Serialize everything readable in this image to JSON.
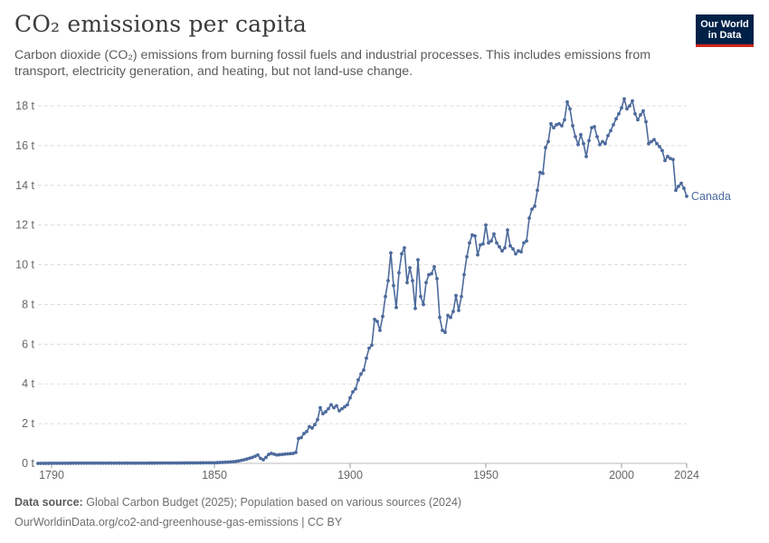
{
  "header": {
    "title": "CO₂ emissions per capita",
    "subtitle": "Carbon dioxide (CO₂) emissions from burning fossil fuels and industrial processes. This includes emissions from transport, electricity generation, and heating, but not land-use change."
  },
  "logo": {
    "line1": "Our World",
    "line2": "in Data"
  },
  "footer": {
    "source_label": "Data source:",
    "source_text": "Global Carbon Budget (2025); Population based on various sources (2024)",
    "url": "OurWorldinData.org/co2-and-greenhouse-gas-emissions | CC BY"
  },
  "colors": {
    "line": "#4c6a9c",
    "grid": "#dddddd",
    "text": "#5b5b5b"
  },
  "chart_data": {
    "type": "line",
    "title": "CO₂ emissions per capita",
    "xlabel": "",
    "ylabel": "",
    "xlim": [
      1785,
      2024
    ],
    "ylim": [
      0,
      18
    ],
    "x_ticks": [
      1790,
      1850,
      1900,
      1950,
      2000,
      2024
    ],
    "y_ticks": [
      0,
      2,
      4,
      6,
      8,
      10,
      12,
      14,
      16,
      18
    ],
    "y_tick_labels": [
      "0 t",
      "2 t",
      "4 t",
      "6 t",
      "8 t",
      "10 t",
      "12 t",
      "14 t",
      "16 t",
      "18 t"
    ],
    "grid": "horizontal-dashed",
    "series": [
      {
        "name": "Canada",
        "points": [
          [
            1785,
            0.0
          ],
          [
            1800,
            0.01
          ],
          [
            1820,
            0.01
          ],
          [
            1840,
            0.02
          ],
          [
            1850,
            0.03
          ],
          [
            1855,
            0.06
          ],
          [
            1858,
            0.1
          ],
          [
            1861,
            0.18
          ],
          [
            1864,
            0.3
          ],
          [
            1866,
            0.42
          ],
          [
            1867,
            0.25
          ],
          [
            1868,
            0.18
          ],
          [
            1869,
            0.3
          ],
          [
            1870,
            0.45
          ],
          [
            1871,
            0.5
          ],
          [
            1873,
            0.42
          ],
          [
            1875,
            0.45
          ],
          [
            1877,
            0.48
          ],
          [
            1879,
            0.5
          ],
          [
            1880,
            0.55
          ],
          [
            1881,
            1.25
          ],
          [
            1882,
            1.3
          ],
          [
            1883,
            1.5
          ],
          [
            1884,
            1.6
          ],
          [
            1885,
            1.85
          ],
          [
            1886,
            1.78
          ],
          [
            1887,
            1.95
          ],
          [
            1888,
            2.2
          ],
          [
            1889,
            2.8
          ],
          [
            1890,
            2.5
          ],
          [
            1891,
            2.6
          ],
          [
            1892,
            2.75
          ],
          [
            1893,
            2.95
          ],
          [
            1894,
            2.8
          ],
          [
            1895,
            2.9
          ],
          [
            1896,
            2.65
          ],
          [
            1897,
            2.75
          ],
          [
            1898,
            2.85
          ],
          [
            1899,
            2.95
          ],
          [
            1900,
            3.3
          ],
          [
            1901,
            3.6
          ],
          [
            1902,
            3.75
          ],
          [
            1903,
            4.2
          ],
          [
            1904,
            4.5
          ],
          [
            1905,
            4.7
          ],
          [
            1906,
            5.3
          ],
          [
            1907,
            5.8
          ],
          [
            1908,
            5.95
          ],
          [
            1909,
            7.25
          ],
          [
            1910,
            7.15
          ],
          [
            1911,
            6.7
          ],
          [
            1912,
            7.4
          ],
          [
            1913,
            8.4
          ],
          [
            1914,
            9.2
          ],
          [
            1915,
            10.6
          ],
          [
            1916,
            8.95
          ],
          [
            1917,
            7.85
          ],
          [
            1918,
            9.6
          ],
          [
            1919,
            10.55
          ],
          [
            1920,
            10.85
          ],
          [
            1921,
            9.1
          ],
          [
            1922,
            9.85
          ],
          [
            1923,
            9.2
          ],
          [
            1924,
            7.8
          ],
          [
            1925,
            10.25
          ],
          [
            1926,
            8.4
          ],
          [
            1927,
            8.0
          ],
          [
            1928,
            9.1
          ],
          [
            1929,
            9.5
          ],
          [
            1930,
            9.55
          ],
          [
            1931,
            9.9
          ],
          [
            1932,
            9.3
          ],
          [
            1933,
            7.35
          ],
          [
            1934,
            6.7
          ],
          [
            1935,
            6.6
          ],
          [
            1936,
            7.45
          ],
          [
            1937,
            7.35
          ],
          [
            1938,
            7.65
          ],
          [
            1939,
            8.45
          ],
          [
            1940,
            7.7
          ],
          [
            1941,
            8.4
          ],
          [
            1942,
            9.5
          ],
          [
            1943,
            10.4
          ],
          [
            1944,
            11.1
          ],
          [
            1945,
            11.5
          ],
          [
            1946,
            11.45
          ],
          [
            1947,
            10.5
          ],
          [
            1948,
            11.0
          ],
          [
            1949,
            11.05
          ],
          [
            1950,
            12.0
          ],
          [
            1951,
            11.1
          ],
          [
            1952,
            11.2
          ],
          [
            1953,
            11.55
          ],
          [
            1954,
            11.1
          ],
          [
            1955,
            10.9
          ],
          [
            1956,
            10.7
          ],
          [
            1957,
            10.85
          ],
          [
            1958,
            11.75
          ],
          [
            1959,
            10.95
          ],
          [
            1960,
            10.8
          ],
          [
            1961,
            10.55
          ],
          [
            1962,
            10.7
          ],
          [
            1963,
            10.65
          ],
          [
            1964,
            11.1
          ],
          [
            1965,
            11.2
          ],
          [
            1966,
            12.35
          ],
          [
            1967,
            12.8
          ],
          [
            1968,
            12.95
          ],
          [
            1969,
            13.75
          ],
          [
            1970,
            14.65
          ],
          [
            1971,
            14.6
          ],
          [
            1972,
            15.9
          ],
          [
            1973,
            16.2
          ],
          [
            1974,
            17.1
          ],
          [
            1975,
            16.9
          ],
          [
            1976,
            17.05
          ],
          [
            1977,
            17.1
          ],
          [
            1978,
            17.0
          ],
          [
            1979,
            17.3
          ],
          [
            1980,
            18.2
          ],
          [
            1981,
            17.85
          ],
          [
            1982,
            17.0
          ],
          [
            1983,
            16.45
          ],
          [
            1984,
            16.05
          ],
          [
            1985,
            16.55
          ],
          [
            1986,
            16.1
          ],
          [
            1987,
            15.45
          ],
          [
            1988,
            16.25
          ],
          [
            1989,
            16.9
          ],
          [
            1990,
            16.95
          ],
          [
            1991,
            16.45
          ],
          [
            1992,
            16.05
          ],
          [
            1993,
            16.2
          ],
          [
            1994,
            16.1
          ],
          [
            1995,
            16.5
          ],
          [
            1996,
            16.75
          ],
          [
            1997,
            17.05
          ],
          [
            1998,
            17.35
          ],
          [
            1999,
            17.6
          ],
          [
            2000,
            17.9
          ],
          [
            2001,
            18.35
          ],
          [
            2002,
            17.85
          ],
          [
            2003,
            18.0
          ],
          [
            2004,
            18.25
          ],
          [
            2005,
            17.6
          ],
          [
            2006,
            17.3
          ],
          [
            2007,
            17.55
          ],
          [
            2008,
            17.75
          ],
          [
            2009,
            17.2
          ],
          [
            2010,
            16.1
          ],
          [
            2011,
            16.2
          ],
          [
            2012,
            16.3
          ],
          [
            2013,
            16.1
          ],
          [
            2014,
            15.95
          ],
          [
            2015,
            15.75
          ],
          [
            2016,
            15.25
          ],
          [
            2017,
            15.45
          ],
          [
            2018,
            15.35
          ],
          [
            2019,
            15.3
          ],
          [
            2020,
            13.75
          ],
          [
            2021,
            13.95
          ],
          [
            2022,
            14.1
          ],
          [
            2023,
            13.85
          ],
          [
            2024,
            13.45
          ]
        ]
      }
    ]
  }
}
